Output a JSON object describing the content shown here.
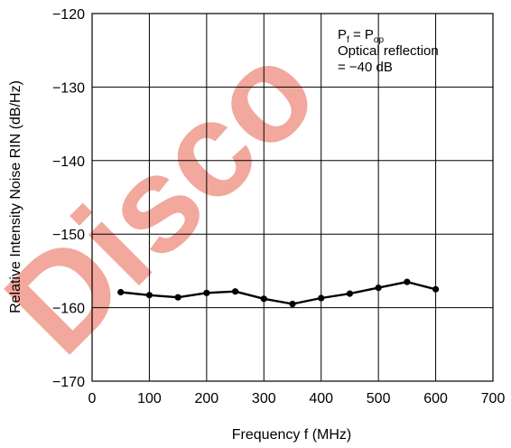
{
  "watermark": {
    "text": "Disco",
    "color": "#f2a89c"
  },
  "chart_data": {
    "type": "line",
    "title": "",
    "xlabel": "Frequency  f (MHz)",
    "ylabel": "Relative Intensity Noise RIN  (dB/Hz)",
    "xlim": [
      0,
      700
    ],
    "ylim": [
      -170,
      -120
    ],
    "x_ticks": [
      0,
      100,
      200,
      300,
      400,
      500,
      600,
      700
    ],
    "y_ticks": [
      -120,
      -130,
      -140,
      -150,
      -160,
      -170
    ],
    "x_tick_labels": [
      "0",
      "100",
      "200",
      "300",
      "400",
      "500",
      "600",
      "700"
    ],
    "y_tick_labels": [
      "−120",
      "−130",
      "−140",
      "−150",
      "−160",
      "−170"
    ],
    "grid": true,
    "series": [
      {
        "x": [
          50,
          100,
          150,
          200,
          250,
          300,
          350,
          400,
          450,
          500,
          550,
          600
        ],
        "y": [
          -157.9,
          -158.3,
          -158.6,
          -158.0,
          -157.8,
          -158.8,
          -159.5,
          -158.7,
          -158.1,
          -157.3,
          -156.5,
          -157.5
        ],
        "color": "#000000",
        "marker": "circle"
      }
    ],
    "annotation": {
      "line1_p": "P",
      "line1_sub_f": "f",
      "line1_eq": " = P",
      "line1_sub_op": "op",
      "line2": "Optical reflection",
      "line3": "= −40 dB"
    }
  }
}
